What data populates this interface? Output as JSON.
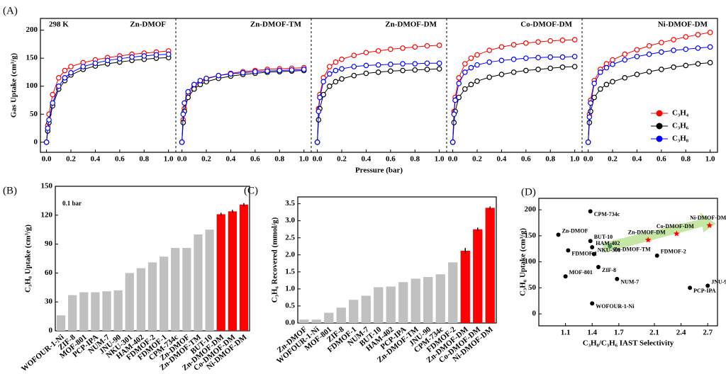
{
  "chart_data": [
    {
      "type": "line",
      "label": "(A)",
      "annotation": "298 K",
      "xlabel": "Pressure (bar)",
      "ylabel": "Gas Uptake (cm³/g)",
      "x": [
        0,
        0.01,
        0.02,
        0.05,
        0.1,
        0.15,
        0.2,
        0.3,
        0.4,
        0.5,
        0.6,
        0.7,
        0.8,
        0.9,
        1.0
      ],
      "xlim": [
        -0.05,
        1.06
      ],
      "xticks": [
        {
          "value": 0,
          "label": "0.0"
        },
        0.2,
        0.4,
        0.6,
        0.8,
        {
          "value": 1,
          "label": "1.0"
        }
      ],
      "ylim": [
        -18,
        221
      ],
      "yticks": [
        0,
        50,
        100,
        150,
        200
      ],
      "legend": "right",
      "series": [
        {
          "name": "C₃H₄",
          "color": "#ff0000"
        },
        {
          "name": "C₃H₆",
          "color": "#000000"
        },
        {
          "name": "C₃H₈",
          "color": "#0000ff"
        }
      ],
      "panels": [
        {
          "title": "Zn-DMOF",
          "values": [
            [
              0,
              30,
              50,
              85,
              115,
              128,
              135,
              142,
              147,
              151,
              154,
              157,
              159,
              161,
              163
            ],
            [
              0,
              20,
              35,
              65,
              95,
              110,
              120,
              130,
              136,
              140,
              143,
              146,
              148,
              150,
              151
            ],
            [
              0,
              25,
              40,
              70,
              100,
              115,
              124,
              135,
              141,
              146,
              149,
              152,
              154,
              156,
              157
            ]
          ]
        },
        {
          "title": "Zn-DMOF-TM",
          "values": [
            [
              0,
              40,
              60,
              85,
              100,
              108,
              113,
              119,
              123,
              126,
              128,
              130,
              131,
              132,
              133
            ],
            [
              0,
              35,
              55,
              80,
              95,
              103,
              108,
              114,
              118,
              121,
              123,
              125,
              126,
              127,
              128
            ],
            [
              0,
              50,
              70,
              90,
              103,
              110,
              114,
              119,
              122,
              124,
              126,
              127,
              128,
              129,
              130
            ]
          ]
        },
        {
          "title": "Zn-DMOF-DM",
          "values": [
            [
              0,
              60,
              85,
              115,
              135,
              143,
              148,
              155,
              160,
              163,
              166,
              168,
              170,
              172,
              173
            ],
            [
              0,
              40,
              60,
              85,
              100,
              108,
              113,
              119,
              123,
              125,
              127,
              128,
              129,
              130,
              131
            ],
            [
              0,
              55,
              80,
              108,
              122,
              128,
              131,
              135,
              137,
              138,
              139,
              140,
              140,
              141,
              141
            ]
          ]
        },
        {
          "title": "Co-DMOF-DM",
          "values": [
            [
              0,
              55,
              80,
              115,
              140,
              150,
              156,
              164,
              170,
              174,
              177,
              179,
              181,
              182,
              183
            ],
            [
              0,
              35,
              55,
              80,
              95,
              103,
              109,
              116,
              121,
              125,
              128,
              130,
              132,
              134,
              135
            ],
            [
              0,
              50,
              75,
              105,
              125,
              133,
              138,
              143,
              146,
              148,
              150,
              151,
              152,
              152,
              153
            ]
          ]
        },
        {
          "title": "Ni-DMOF-DM",
          "values": [
            [
              0,
              50,
              75,
              110,
              130,
              140,
              147,
              157,
              165,
              172,
              178,
              183,
              188,
              192,
              196
            ],
            [
              0,
              35,
              55,
              80,
              95,
              103,
              108,
              115,
              121,
              126,
              130,
              134,
              137,
              140,
              142
            ],
            [
              0,
              45,
              70,
              105,
              125,
              133,
              139,
              147,
              153,
              157,
              161,
              164,
              166,
              168,
              170
            ]
          ]
        }
      ]
    },
    {
      "type": "bar",
      "label": "(B)",
      "annotation": "0.1 bar",
      "ylabel": "C₃H₈ Uptake (cm³/g)",
      "categories": [
        "WOFOUR-1-Ni",
        "ZIF-8",
        "MOF-801",
        "PCP-IPA",
        "NUM-7",
        "JNU-90",
        "NKU-301",
        "HAM-402",
        "FDMOF-2",
        "FDMOF-1",
        "CPM-734c",
        "Zn-DMOF",
        "Zn-DMOF-TM",
        "BUT-10",
        "Zn-DMOF-DM",
        "Co-DMOF-DM",
        "Ni-DMOF-DM"
      ],
      "values": [
        16,
        37,
        40,
        40,
        41,
        42,
        60,
        65,
        71,
        77,
        86,
        86,
        100,
        105,
        121,
        124,
        131
      ],
      "errors": [
        null,
        null,
        null,
        null,
        null,
        null,
        null,
        null,
        null,
        null,
        null,
        null,
        null,
        null,
        1.5,
        1.5,
        1.5
      ],
      "colors": [
        "#c0c0c0",
        "#c0c0c0",
        "#c0c0c0",
        "#c0c0c0",
        "#c0c0c0",
        "#c0c0c0",
        "#c0c0c0",
        "#c0c0c0",
        "#c0c0c0",
        "#c0c0c0",
        "#c0c0c0",
        "#c0c0c0",
        "#c0c0c0",
        "#c0c0c0",
        "#ff0000",
        "#ff0000",
        "#ff0000"
      ],
      "ylim": [
        0,
        150
      ],
      "yticks": [
        0,
        30,
        60,
        90,
        120,
        150
      ]
    },
    {
      "type": "bar",
      "label": "(C)",
      "ylabel": "C₃H₆ Recovered (mmol/g)",
      "categories": [
        "Zn-DMOF",
        "WOFOUR-1-Ni",
        "MOF-801",
        "ZIF-8",
        "FDMOF-1",
        "NUM-7",
        "BUT-10",
        "HAM-402",
        "PCP-IPA",
        "Zn-DMOF-TM",
        "JNU-90",
        "CPM-734c",
        "FDMOF-2",
        "Zn-DMOF-DM",
        "Co-DMOF-DM",
        "Ni-DMOF-DM"
      ],
      "values": [
        0.1,
        0.1,
        0.3,
        0.45,
        0.68,
        0.8,
        1.05,
        1.07,
        1.2,
        1.3,
        1.35,
        1.43,
        1.78,
        2.12,
        2.75,
        3.38
      ],
      "errors": [
        null,
        null,
        null,
        null,
        null,
        null,
        null,
        null,
        null,
        null,
        null,
        null,
        null,
        0.08,
        0.05,
        0.04
      ],
      "colors": [
        "#c0c0c0",
        "#c0c0c0",
        "#c0c0c0",
        "#c0c0c0",
        "#c0c0c0",
        "#c0c0c0",
        "#c0c0c0",
        "#c0c0c0",
        "#c0c0c0",
        "#c0c0c0",
        "#c0c0c0",
        "#c0c0c0",
        "#c0c0c0",
        "#ff0000",
        "#ff0000",
        "#ff0000"
      ],
      "ylim": [
        0,
        3.7
      ],
      "yticks": [
        {
          "value": 0,
          "label": "0.0"
        },
        0.5,
        {
          "value": 1,
          "label": "1.0"
        },
        1.5,
        {
          "value": 2,
          "label": "2.0"
        },
        2.5,
        {
          "value": 3,
          "label": "3.0"
        },
        3.5
      ]
    },
    {
      "type": "scatter",
      "label": "(D)",
      "xlabel": "C₃H₈/C₃H₆ IAST Selectivity",
      "ylabel": "C₃H₈ Uptake (cm³/g)",
      "labels": [
        "Zn-DMOF",
        "CPM-734c",
        "BUT-10",
        "Zn-DMOF-TM",
        "HAM-402",
        "FDMOF-1",
        "NKU-301",
        "ZIF-8",
        "FDMOF-2",
        "NUM-7",
        "MOF-801",
        "PCP-IPA",
        "JNU-90",
        "WOFOUR-1-Ni",
        "Zn-DMOF-DM",
        "Co-DMOF-DM",
        "Ni-DMOF-DM"
      ],
      "x": [
        1.02,
        1.38,
        1.38,
        1.6,
        1.4,
        1.13,
        1.42,
        1.47,
        2.13,
        1.68,
        1.1,
        2.5,
        2.7,
        1.4,
        2.03,
        2.35,
        2.72
      ],
      "y": [
        152,
        197,
        140,
        130,
        128,
        122,
        115,
        90,
        112,
        67,
        72,
        50,
        54,
        20,
        142,
        154,
        170
      ],
      "colors": [
        "#000000",
        "#000000",
        "#000000",
        "#2e8b57",
        "#000000",
        "#000000",
        "#000000",
        "#000000",
        "#000000",
        "#000000",
        "#000000",
        "#000000",
        "#000000",
        "#000000",
        "#ff0000",
        "#ff0000",
        "#ff0000"
      ],
      "markers": [
        "circle",
        "circle",
        "circle",
        "circle",
        "circle",
        "circle",
        "circle",
        "circle",
        "circle",
        "circle",
        "circle",
        "circle",
        "circle",
        "circle",
        "star",
        "star",
        "star"
      ],
      "xlim": [
        0.8,
        2.81
      ],
      "xticks": [
        1.1,
        1.4,
        1.7,
        2.1,
        2.4,
        2.7
      ],
      "ylim": [
        -23,
        222
      ],
      "yticks": [
        0,
        50,
        100,
        150,
        200
      ]
    }
  ]
}
